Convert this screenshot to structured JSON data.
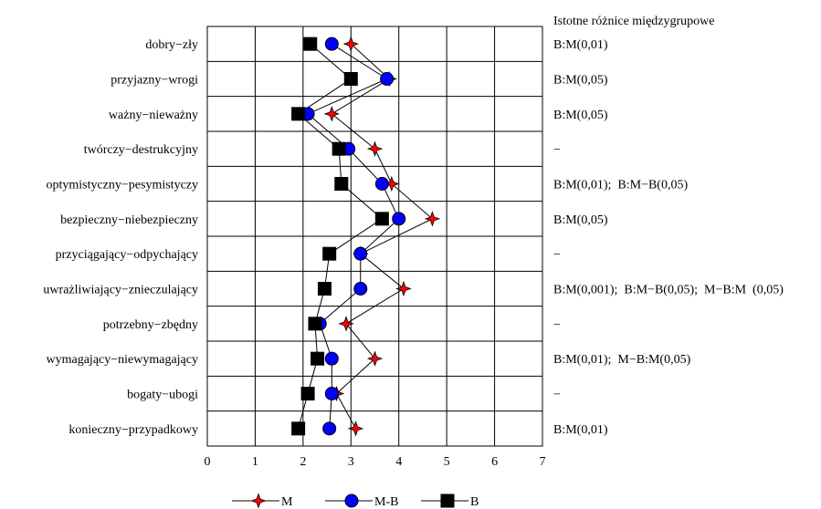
{
  "chart_data": {
    "type": "line",
    "orientation": "horizontal",
    "categories": [
      "dobry−zły",
      "przyjazny−wrogi",
      "ważny−nieważny",
      "twórczy−destrukcyjny",
      "optymistyczny−pesymistyczy",
      "bezpieczny−niebezpieczny",
      "przyciągający−odpychający",
      "uwrażliwiający−znieczulający",
      "potrzebny−zbędny",
      "wymagający−niewymagający",
      "bogaty−ubogi",
      "konieczny−przypadkowy"
    ],
    "xlim": [
      0,
      7
    ],
    "x_ticks": [
      "0",
      "1",
      "2",
      "3",
      "4",
      "5",
      "6",
      "7"
    ],
    "grid": true,
    "legend_position": "bottom",
    "series": [
      {
        "name": "M",
        "marker": "star",
        "color": "#ff0000",
        "values": [
          3.0,
          3.8,
          2.6,
          3.5,
          3.85,
          4.7,
          3.2,
          4.1,
          2.9,
          3.5,
          2.7,
          3.1
        ]
      },
      {
        "name": "M-B",
        "marker": "circle",
        "color": "#0000ff",
        "values": [
          2.6,
          3.75,
          2.1,
          2.95,
          3.65,
          4.0,
          3.2,
          3.2,
          2.35,
          2.6,
          2.6,
          2.55
        ]
      },
      {
        "name": "B",
        "marker": "square",
        "color": "#000000",
        "values": [
          2.15,
          3.0,
          1.9,
          2.75,
          2.8,
          3.65,
          2.55,
          2.45,
          2.25,
          2.3,
          2.1,
          1.9
        ]
      }
    ],
    "significance_header": "Istotne różnice międzygrupowe",
    "significance": [
      "B:M(0,01)",
      "B:M(0,05)",
      "B:M(0,05)",
      "−",
      "B:M(0,01);  B:M−B(0,05)",
      "B:M(0,05)",
      "−",
      "B:M(0,001);  B:M−B(0,05);  M−B:M  (0,05)",
      "−",
      "B:M(0,01);  M−B:M(0,05)",
      "−",
      "B:M(0,01)"
    ]
  }
}
